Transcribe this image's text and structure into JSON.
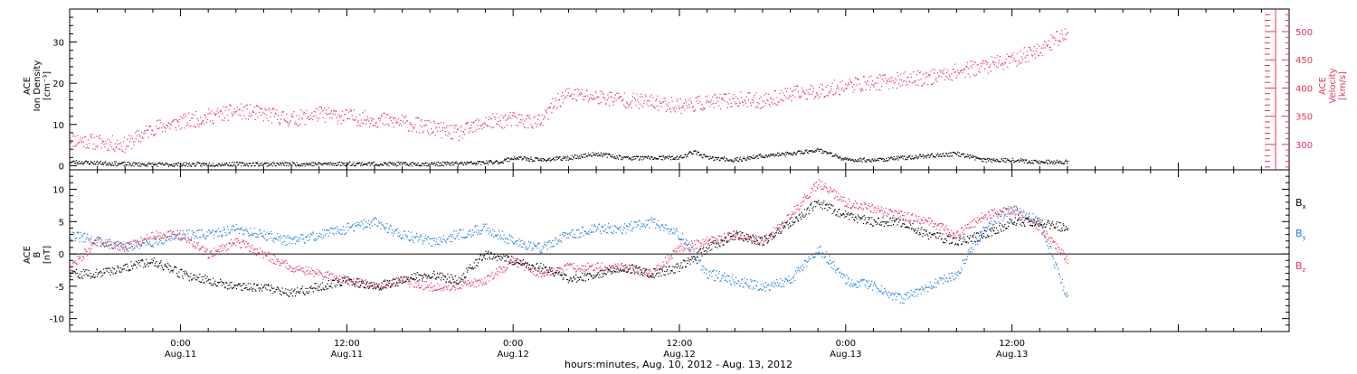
{
  "colors": {
    "black": "#000000",
    "red": "#e8315a",
    "blue": "#1a7fe0"
  },
  "x_axis": {
    "title": "hours:minutes, Aug. 10, 2012 - Aug. 13, 2012",
    "range_hours": [
      -8,
      80
    ],
    "ticks": [
      {
        "hour": 0,
        "time": "0:00",
        "date": "Aug.11"
      },
      {
        "hour": 12,
        "time": "12:00",
        "date": "Aug.11"
      },
      {
        "hour": 24,
        "time": "0:00",
        "date": "Aug.12"
      },
      {
        "hour": 36,
        "time": "12:00",
        "date": "Aug.12"
      },
      {
        "hour": 48,
        "time": "0:00",
        "date": "Aug.13"
      },
      {
        "hour": 60,
        "time": "12:00",
        "date": "Aug.13"
      }
    ]
  },
  "panels": {
    "top": {
      "left_label": [
        "ACE",
        "Ion Density",
        "[cm⁻³]"
      ],
      "right_label": [
        "ACE",
        "Velocity",
        "[km/s]"
      ],
      "left_ticks": [
        "0",
        "10",
        "20",
        "30"
      ],
      "right_ticks": [
        "300",
        "350",
        "400",
        "450",
        "500"
      ]
    },
    "bottom": {
      "left_label": [
        "ACE",
        "B",
        "[nT]"
      ],
      "left_ticks": [
        "-10",
        "-5",
        "0",
        "5",
        "10"
      ],
      "legend": [
        {
          "label": "B",
          "sub": "x",
          "color": "#000000"
        },
        {
          "label": "B",
          "sub": "y",
          "color": "#1a7fe0"
        },
        {
          "label": "B",
          "sub": "z",
          "color": "#e8315a"
        }
      ]
    }
  },
  "chart_data": [
    {
      "type": "scatter",
      "panel": "top",
      "xlabel": "hours:minutes, Aug. 10, 2012 - Aug. 13, 2012",
      "x_units": "hours since Aug. 11, 2012 00:00",
      "series": [
        {
          "axis": "left",
          "color": "#000000",
          "ylim": [
            -1,
            38
          ],
          "x": [
            -8,
            -6,
            -4,
            -2,
            0,
            4,
            8,
            12,
            16,
            20,
            23,
            24,
            26,
            28,
            30,
            32,
            34,
            36,
            37,
            38,
            40,
            42,
            44,
            46,
            48,
            50,
            52,
            54,
            56,
            58,
            60,
            62,
            64
          ],
          "y": [
            1,
            0.8,
            0.5,
            0.4,
            0.4,
            0.5,
            0.5,
            0.6,
            0.5,
            0.6,
            1,
            2,
            1.5,
            2,
            3,
            2,
            2,
            2,
            3.5,
            2,
            1.5,
            2.5,
            3,
            4,
            1.5,
            1.5,
            2,
            2.5,
            3,
            1.5,
            1.5,
            1,
            1
          ]
        },
        {
          "axis": "right",
          "color": "#e8315a",
          "ylim": [
            255,
            540
          ],
          "x": [
            -8,
            -6,
            -4,
            -2,
            0,
            2,
            4,
            6,
            8,
            10,
            12,
            14,
            16,
            18,
            20,
            22,
            24,
            26,
            27,
            28,
            30,
            32,
            34,
            36,
            38,
            40,
            42,
            44,
            46,
            48,
            50,
            52,
            54,
            56,
            58,
            60,
            62,
            64
          ],
          "y": [
            310,
            305,
            300,
            330,
            340,
            350,
            360,
            355,
            345,
            355,
            350,
            345,
            340,
            330,
            320,
            340,
            345,
            340,
            375,
            390,
            385,
            380,
            375,
            370,
            375,
            380,
            378,
            390,
            395,
            405,
            410,
            415,
            420,
            430,
            440,
            450,
            470,
            500
          ]
        }
      ],
      "left_ylabel": "ACE Ion Density [cm⁻³]",
      "right_ylabel": "ACE Velocity [km/s]"
    },
    {
      "type": "scatter",
      "panel": "bottom",
      "xlabel": "hours:minutes, Aug. 10, 2012 - Aug. 13, 2012",
      "ylabel": "ACE B [nT]",
      "ylim": [
        -12,
        13
      ],
      "series": [
        {
          "name": "Bx",
          "color": "#000000",
          "x": [
            -8,
            -6,
            -4,
            -2,
            0,
            2,
            4,
            6,
            8,
            10,
            12,
            14,
            16,
            18,
            20,
            22,
            24,
            26,
            28,
            30,
            32,
            34,
            36,
            38,
            40,
            42,
            44,
            46,
            48,
            50,
            52,
            54,
            56,
            58,
            60,
            62,
            64
          ],
          "y": [
            -3,
            -3,
            -2,
            -1,
            -3,
            -4,
            -5,
            -5,
            -6,
            -5,
            -4,
            -5,
            -4,
            -3,
            -4,
            0,
            -1,
            -2,
            -4,
            -3,
            -2,
            -3,
            -2,
            1,
            3,
            2,
            5,
            8,
            6,
            5,
            5,
            3,
            2,
            3,
            5,
            5,
            4
          ]
        },
        {
          "name": "By",
          "color": "#1a7fe0",
          "x": [
            -8,
            -6,
            -4,
            -2,
            0,
            2,
            4,
            6,
            8,
            10,
            12,
            14,
            16,
            18,
            20,
            22,
            24,
            26,
            28,
            30,
            32,
            34,
            36,
            38,
            40,
            42,
            44,
            46,
            48,
            50,
            52,
            54,
            56,
            58,
            60,
            62,
            64
          ],
          "y": [
            3,
            2,
            1,
            2,
            3,
            3,
            4,
            3,
            2,
            3,
            4,
            5,
            3,
            2,
            3,
            4,
            2,
            1,
            3,
            4,
            4,
            5,
            3,
            -3,
            -4,
            -5,
            -4,
            1,
            -4,
            -5,
            -7,
            -5,
            -3,
            4,
            7,
            5,
            -7
          ]
        },
        {
          "name": "Bz",
          "color": "#e8315a",
          "x": [
            -8,
            -6,
            -4,
            -2,
            0,
            2,
            4,
            6,
            8,
            10,
            12,
            14,
            16,
            18,
            20,
            22,
            24,
            26,
            28,
            30,
            32,
            34,
            36,
            38,
            40,
            42,
            44,
            46,
            48,
            50,
            52,
            54,
            56,
            58,
            60,
            62,
            64
          ],
          "y": [
            -2,
            2,
            1,
            3,
            3,
            0,
            2,
            0,
            -2,
            -3,
            -4,
            -5,
            -4,
            -5,
            -5,
            -4,
            -1,
            -3,
            -2,
            -2,
            -2,
            -3,
            1,
            2,
            3,
            2,
            6,
            11,
            8,
            7,
            6,
            5,
            3,
            6,
            7,
            4,
            -1
          ]
        }
      ]
    }
  ]
}
